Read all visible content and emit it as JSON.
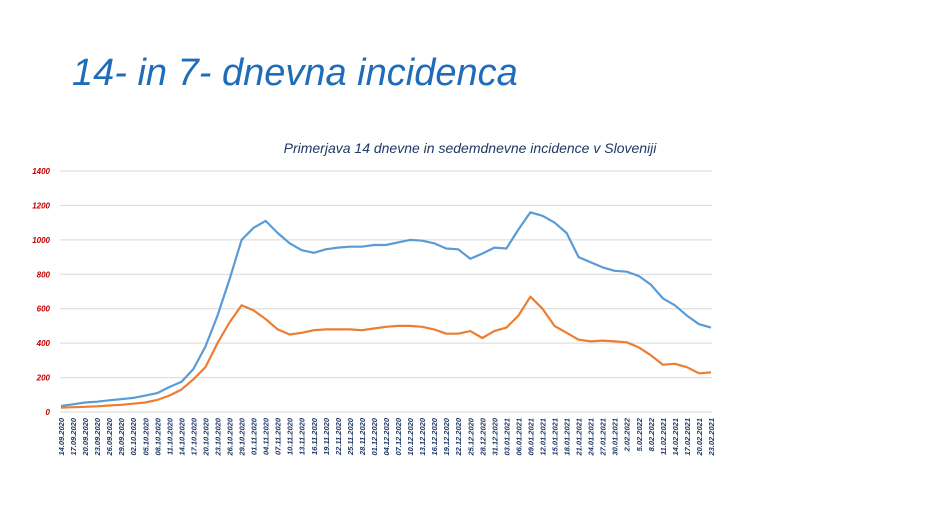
{
  "slide": {
    "title": "14- in 7- dnevna incidenca"
  },
  "chart_data": {
    "type": "line",
    "title": "Primerjava 14 dnevne in sedemdnevne  incidence v Sloveniji",
    "xlabel": "",
    "ylabel": "",
    "ylim": [
      0,
      1400
    ],
    "yticks": [
      0,
      200,
      400,
      600,
      800,
      1000,
      1200,
      1400
    ],
    "grid": true,
    "legend": "none",
    "categories": [
      "14.09.2020",
      "17.09.2020",
      "20.09.2020",
      "23.09.2020",
      "26.09.2020",
      "29.09.2020",
      "02.10.2020",
      "05.10.2020",
      "08.10.2020",
      "11.10.2020",
      "14.10.2020",
      "17.10.2020",
      "20.10.2020",
      "23.10.2020",
      "26.10.2020",
      "29.10.2020",
      "01.11.2020",
      "04.11.2020",
      "07.11.2020",
      "10.11.2020",
      "13.11.2020",
      "16.11.2020",
      "19.11.2020",
      "22.11.2020",
      "25.11.2020",
      "28.11.2020",
      "01.12.2020",
      "04.12.2020",
      "07.12.2020",
      "10.12.2020",
      "13.12.2020",
      "16.12.2020",
      "19.12.2020",
      "22.12.2020",
      "25.12.2020",
      "28.12.2020",
      "31.12.2020",
      "03.01.2021",
      "06.01.2021",
      "09.01.2021",
      "12.01.2021",
      "15.01.2021",
      "18.01.2021",
      "21.01.2021",
      "24.01.2021",
      "27.01.2021",
      "30.01.2021",
      "2.02.2022",
      "5.02.2022",
      "8.02.2022",
      "11.02.2021",
      "14.02.2021",
      "17.02.2021",
      "20.02.2021",
      "23.02.2021"
    ],
    "series": [
      {
        "color": "#5b9bd5",
        "values": [
          35,
          45,
          55,
          60,
          68,
          75,
          82,
          95,
          110,
          145,
          175,
          250,
          380,
          560,
          770,
          1000,
          1070,
          1110,
          1040,
          980,
          940,
          925,
          945,
          955,
          960,
          960,
          970,
          970,
          985,
          1000,
          995,
          980,
          950,
          945,
          890,
          920,
          955,
          950,
          1060,
          1160,
          1140,
          1100,
          1040,
          900,
          870,
          840,
          820,
          815,
          790,
          740,
          660,
          620,
          560,
          510,
          490
        ]
      },
      {
        "color": "#ed7d31",
        "values": [
          25,
          28,
          30,
          33,
          38,
          42,
          48,
          55,
          70,
          95,
          130,
          190,
          260,
          400,
          520,
          620,
          590,
          540,
          480,
          450,
          460,
          475,
          480,
          480,
          480,
          475,
          485,
          495,
          500,
          500,
          495,
          480,
          455,
          455,
          470,
          430,
          470,
          490,
          560,
          670,
          600,
          500,
          460,
          420,
          410,
          415,
          410,
          405,
          375,
          330,
          275,
          280,
          260,
          225,
          230
        ]
      }
    ]
  }
}
